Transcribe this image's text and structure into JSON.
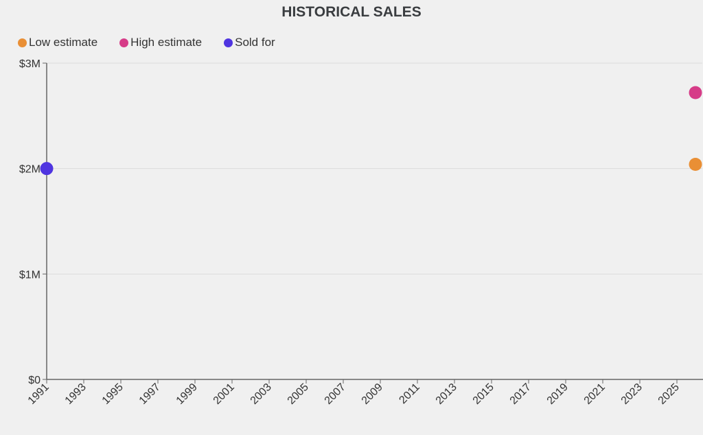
{
  "chart_data": {
    "type": "scatter",
    "title": "HISTORICAL SALES",
    "xlabel": "",
    "ylabel": "",
    "xlim": [
      1991,
      2026
    ],
    "ylim": [
      0,
      3000000
    ],
    "x_ticks": [
      "1991",
      "1993",
      "1995",
      "1997",
      "1999",
      "2001",
      "2003",
      "2005",
      "2007",
      "2009",
      "2011",
      "2013",
      "2015",
      "2017",
      "2019",
      "2021",
      "2023",
      "2025"
    ],
    "y_ticks": [
      {
        "value": 0,
        "label": "$0"
      },
      {
        "value": 1000000,
        "label": "$1M"
      },
      {
        "value": 2000000,
        "label": "$2M"
      },
      {
        "value": 3000000,
        "label": "$3M"
      }
    ],
    "grid": true,
    "legend_position": "top-left",
    "series": [
      {
        "name": "Low estimate",
        "color": "#e98f35",
        "points": [
          {
            "x": 2026,
            "y": 2040000
          }
        ]
      },
      {
        "name": "High estimate",
        "color": "#d63c88",
        "points": [
          {
            "x": 2026,
            "y": 2720000
          }
        ]
      },
      {
        "name": "Sold for",
        "color": "#4f35e0",
        "points": [
          {
            "x": 1991,
            "y": 2000000
          }
        ]
      }
    ]
  }
}
